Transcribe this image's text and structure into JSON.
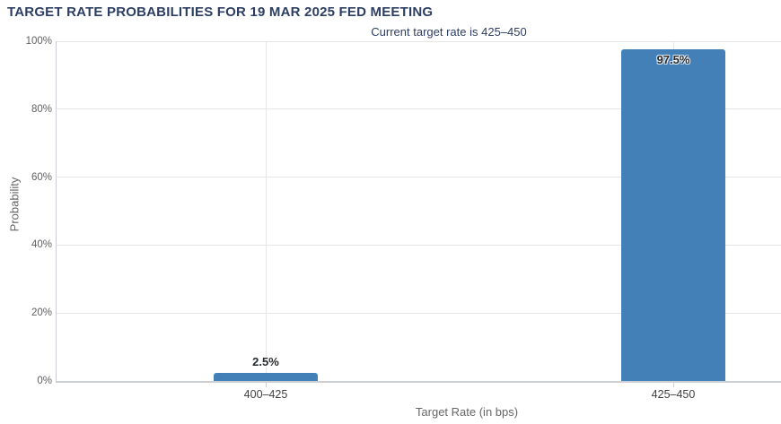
{
  "chart_data": {
    "type": "bar",
    "title": "TARGET RATE PROBABILITIES FOR 19 MAR 2025 FED MEETING",
    "subtitle": "Current target rate is 425–450",
    "categories": [
      "400–425",
      "425–450"
    ],
    "values": [
      2.5,
      97.5
    ],
    "value_labels": [
      "2.5%",
      "97.5%"
    ],
    "xlabel": "Target Rate (in bps)",
    "ylabel": "Probability",
    "ylim": [
      0,
      100
    ],
    "yticks": [
      0,
      20,
      40,
      60,
      80,
      100
    ],
    "ytick_labels": [
      "0%",
      "20%",
      "40%",
      "60%",
      "80%",
      "100%"
    ],
    "grid": true,
    "legend": "none",
    "colors": {
      "bar": "#4380b8",
      "title_text": "#2d3e63",
      "gridline": "#e6e6e6",
      "axis_line": "#ccd0d6",
      "tick_text": "#606060",
      "background": "#ffffff"
    }
  }
}
